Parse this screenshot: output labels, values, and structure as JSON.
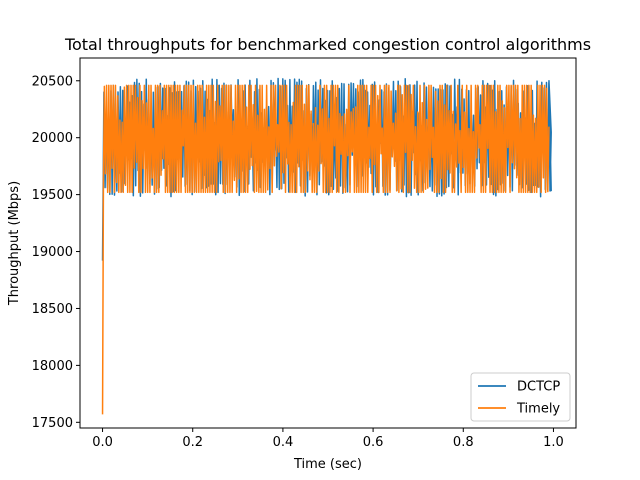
{
  "chart_data": {
    "type": "line",
    "title": "Total throughputs for benchmarked congestion control algorithms",
    "xlabel": "Time (sec)",
    "ylabel": "Throughput (Mbps)",
    "xlim": [
      -0.05,
      1.05
    ],
    "ylim": [
      17450,
      20700
    ],
    "xticks": [
      0.0,
      0.2,
      0.4,
      0.6,
      0.8,
      1.0
    ],
    "xtick_labels": [
      "0.0",
      "0.2",
      "0.4",
      "0.6",
      "0.8",
      "1.0"
    ],
    "yticks": [
      17500,
      18000,
      18500,
      19000,
      19500,
      20000,
      20500
    ],
    "ytick_labels": [
      "17500",
      "18000",
      "18500",
      "19000",
      "19500",
      "20000",
      "20500"
    ],
    "grid": false,
    "legend_position": "bottom-right",
    "series": [
      {
        "name": "DCTCP",
        "color": "#1f77b4",
        "start": [
          [
            0.0,
            18920
          ],
          [
            0.003,
            20400
          ]
        ],
        "t_range": [
          0.003,
          0.995
        ],
        "mean": 20000,
        "amplitude": 460,
        "noise": 60,
        "cycles": 190,
        "end": [
          [
            0.99,
            20500
          ],
          [
            0.995,
            19530
          ]
        ]
      },
      {
        "name": "Timely",
        "color": "#ff7f0e",
        "start": [
          [
            0.0,
            17570
          ],
          [
            0.002,
            19650
          ],
          [
            0.004,
            20380
          ]
        ],
        "t_range": [
          0.004,
          0.99
        ],
        "mean": 19990,
        "amplitude": 470,
        "noise": 0,
        "cycles": 200,
        "end": []
      }
    ]
  }
}
